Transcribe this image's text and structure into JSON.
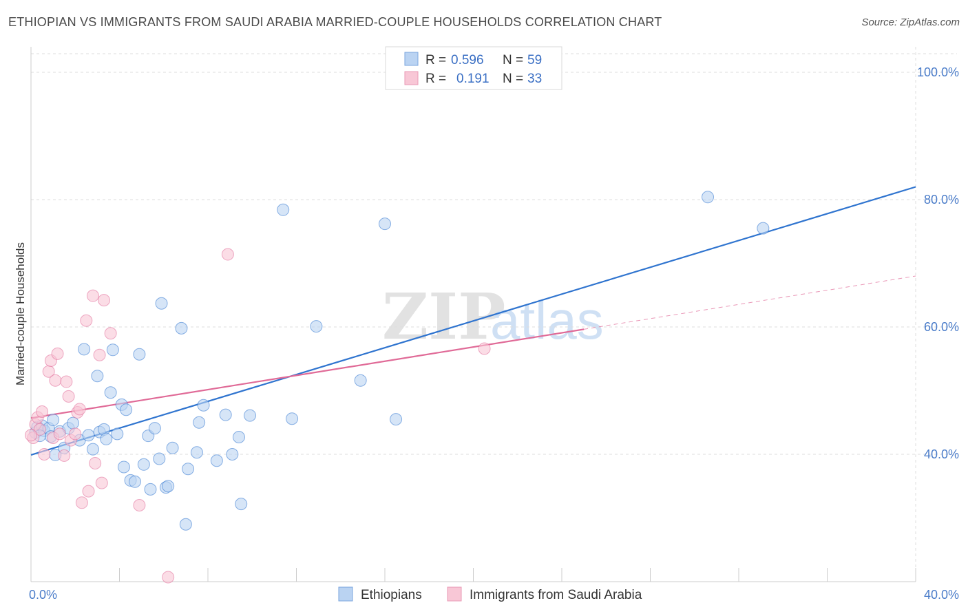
{
  "title": "ETHIOPIAN VS IMMIGRANTS FROM SAUDI ARABIA MARRIED-COUPLE HOUSEHOLDS CORRELATION CHART",
  "source": "Source: ZipAtlas.com",
  "watermark": {
    "zip": "ZIP",
    "atlas": "atlas"
  },
  "colors": {
    "blue": "#2f74cf",
    "blue_fill": "#bad3f2",
    "pink": "#e06a97",
    "pink_fill": "#f8c7d6",
    "grid": "#dddddd",
    "tick_text": "#4a7cc9"
  },
  "legend": {
    "r_label": "R =",
    "n_label": "N =",
    "rows": [
      {
        "series": "Ethiopians",
        "r": "0.596",
        "n": "59"
      },
      {
        "series": "Immigrants from Saudi Arabia",
        "r": "0.191",
        "n": "33"
      }
    ]
  },
  "chart_data": {
    "type": "scatter",
    "title": "ETHIOPIAN VS IMMIGRANTS FROM SAUDI ARABIA MARRIED-COUPLE HOUSEHOLDS CORRELATION CHART",
    "xlabel": "",
    "ylabel": "Married-couple Households",
    "xlim": [
      0,
      40
    ],
    "ylim": [
      20,
      104
    ],
    "x_tick_labels": [
      {
        "value": 0,
        "label": "0.0%"
      },
      {
        "value": 40,
        "label": "40.0%"
      }
    ],
    "y_tick_labels": [
      {
        "value": 40,
        "label": "40.0%"
      },
      {
        "value": 60,
        "label": "60.0%"
      },
      {
        "value": 80,
        "label": "80.0%"
      },
      {
        "value": 100,
        "label": "100.0%"
      }
    ],
    "x_minor_ticks": [
      4,
      8,
      12,
      16,
      20,
      24,
      28,
      32,
      36,
      40
    ],
    "series": [
      {
        "name": "Ethiopians",
        "color": "#2f74cf",
        "fill": "#bad3f2",
        "trend": {
          "x": [
            0,
            40
          ],
          "y": [
            39.9,
            82.0
          ],
          "dashed_from": null
        },
        "points": [
          [
            0.2,
            43.4
          ],
          [
            0.3,
            44.3
          ],
          [
            0.5,
            44.5
          ],
          [
            0.6,
            43.7
          ],
          [
            0.8,
            44.1
          ],
          [
            0.9,
            42.8
          ],
          [
            1.0,
            45.4
          ],
          [
            1.1,
            39.9
          ],
          [
            1.3,
            43.6
          ],
          [
            1.5,
            41.0
          ],
          [
            1.7,
            44.1
          ],
          [
            1.9,
            44.9
          ],
          [
            2.2,
            42.2
          ],
          [
            2.4,
            56.5
          ],
          [
            2.6,
            43.0
          ],
          [
            2.8,
            40.8
          ],
          [
            3.0,
            52.3
          ],
          [
            3.1,
            43.5
          ],
          [
            3.3,
            43.9
          ],
          [
            3.4,
            42.4
          ],
          [
            3.6,
            49.7
          ],
          [
            3.7,
            56.4
          ],
          [
            3.9,
            43.2
          ],
          [
            4.1,
            47.8
          ],
          [
            4.3,
            47.0
          ],
          [
            4.2,
            38.0
          ],
          [
            4.5,
            35.9
          ],
          [
            4.7,
            35.7
          ],
          [
            4.9,
            55.7
          ],
          [
            5.1,
            38.4
          ],
          [
            5.3,
            42.9
          ],
          [
            5.4,
            34.5
          ],
          [
            5.6,
            44.1
          ],
          [
            5.8,
            39.3
          ],
          [
            5.9,
            63.7
          ],
          [
            6.1,
            34.8
          ],
          [
            6.2,
            35.0
          ],
          [
            6.4,
            41.0
          ],
          [
            6.8,
            59.8
          ],
          [
            7.0,
            29.0
          ],
          [
            7.1,
            37.7
          ],
          [
            7.5,
            40.3
          ],
          [
            7.6,
            45.0
          ],
          [
            7.8,
            47.7
          ],
          [
            8.4,
            39.0
          ],
          [
            8.8,
            46.2
          ],
          [
            9.1,
            40.0
          ],
          [
            9.4,
            42.7
          ],
          [
            9.5,
            32.2
          ],
          [
            9.9,
            46.1
          ],
          [
            11.4,
            78.4
          ],
          [
            11.8,
            45.6
          ],
          [
            12.9,
            60.1
          ],
          [
            14.9,
            51.6
          ],
          [
            16.0,
            76.2
          ],
          [
            16.5,
            45.5
          ],
          [
            30.6,
            80.4
          ],
          [
            33.1,
            75.5
          ],
          [
            0.4,
            42.9
          ]
        ]
      },
      {
        "name": "Immigrants from Saudi Arabia",
        "color": "#e06a97",
        "fill": "#f8c7d6",
        "trend": {
          "x": [
            0,
            40
          ],
          "y": [
            45.7,
            68.0
          ],
          "dashed_from": 25.0
        },
        "points": [
          [
            0.1,
            42.6
          ],
          [
            0.2,
            44.7
          ],
          [
            0.3,
            45.8
          ],
          [
            0.4,
            43.9
          ],
          [
            0.5,
            46.7
          ],
          [
            0.6,
            40.0
          ],
          [
            0.8,
            53.0
          ],
          [
            0.9,
            54.7
          ],
          [
            1.0,
            42.6
          ],
          [
            1.1,
            51.6
          ],
          [
            1.2,
            55.8
          ],
          [
            1.3,
            43.2
          ],
          [
            1.5,
            39.8
          ],
          [
            1.6,
            51.4
          ],
          [
            1.7,
            49.1
          ],
          [
            1.8,
            42.2
          ],
          [
            2.0,
            43.2
          ],
          [
            2.1,
            46.6
          ],
          [
            2.2,
            47.1
          ],
          [
            2.3,
            32.4
          ],
          [
            2.5,
            61.0
          ],
          [
            2.6,
            34.2
          ],
          [
            2.8,
            64.9
          ],
          [
            2.9,
            38.6
          ],
          [
            3.1,
            55.6
          ],
          [
            3.2,
            35.5
          ],
          [
            3.3,
            64.2
          ],
          [
            3.6,
            59.0
          ],
          [
            4.9,
            32.0
          ],
          [
            6.2,
            20.7
          ],
          [
            8.9,
            71.4
          ],
          [
            20.5,
            56.6
          ],
          [
            0.0,
            43.0
          ]
        ]
      }
    ]
  }
}
